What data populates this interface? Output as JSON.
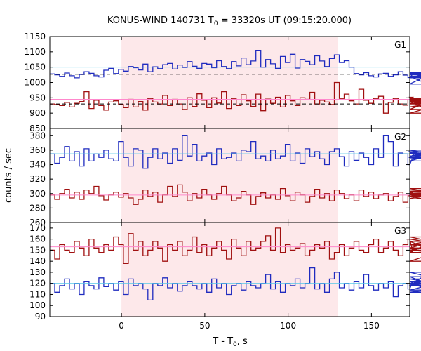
{
  "title": {
    "prefix": "KONUS-WIND 140731 T",
    "sub": "0",
    "suffix": " = 33320s UT (09:15:20.000)"
  },
  "colors": {
    "red_series": "#a01010",
    "blue_series": "#1f2bbf",
    "red_mean": "#ff88cc",
    "blue_mean": "#55c8e8",
    "shade": "#fde8ea",
    "dashed": "#000000"
  },
  "chart_data": [
    {
      "type": "line",
      "step": true,
      "panel_label": "G1",
      "ylim": [
        850,
        1150
      ],
      "yticks": [
        850,
        900,
        950,
        1000,
        1050,
        1100,
        1150
      ],
      "xlim": [
        -43,
        173
      ],
      "xticks": [
        0,
        50,
        100,
        150
      ],
      "shaded_interval": [
        0,
        130
      ],
      "series": [
        {
          "color": "blue",
          "mean": 1050,
          "background": 1027,
          "x_start": -43,
          "bin_width": 2.944,
          "values": [
            1028,
            1025,
            1020,
            1031,
            1022,
            1015,
            1026,
            1035,
            1030,
            1022,
            1018,
            1040,
            1046,
            1029,
            1043,
            1037,
            1052,
            1048,
            1041,
            1060,
            1035,
            1051,
            1045,
            1058,
            1062,
            1044,
            1057,
            1049,
            1068,
            1053,
            1046,
            1062,
            1060,
            1048,
            1071,
            1052,
            1045,
            1068,
            1054,
            1080,
            1058,
            1070,
            1105,
            1050,
            1075,
            1061,
            1046,
            1085,
            1065,
            1092,
            1047,
            1075,
            1069,
            1058,
            1087,
            1070,
            1052,
            1078,
            1090,
            1065,
            1071,
            1050,
            1029,
            1025,
            1032,
            1022,
            1018,
            1028,
            1030,
            1020,
            1025,
            1035,
            1024,
            1016,
            1027,
            1030,
            1020,
            995,
            1030,
            1018,
            1025,
            1032,
            1027,
            1015,
            1028,
            1020,
            1025
          ]
        },
        {
          "color": "red",
          "mean": 945,
          "background": 930,
          "x_start": -43,
          "bin_width": 2.944,
          "values": [
            930,
            928,
            925,
            935,
            920,
            932,
            938,
            970,
            915,
            942,
            925,
            910,
            936,
            940,
            928,
            918,
            945,
            920,
            938,
            910,
            948,
            936,
            930,
            958,
            925,
            945,
            930,
            912,
            950,
            922,
            963,
            942,
            918,
            950,
            933,
            970,
            915,
            948,
            925,
            960,
            940,
            922,
            962,
            908,
            946,
            932,
            952,
            920,
            958,
            940,
            925,
            950,
            945,
            968,
            930,
            942,
            936,
            928,
            1000,
            948,
            962,
            940,
            930,
            978,
            942,
            932,
            948,
            955,
            900,
            935,
            948,
            930,
            926,
            944,
            952,
            930,
            938,
            912,
            942,
            900,
            930,
            944,
            938,
            920,
            948,
            932,
            940
          ]
        }
      ]
    },
    {
      "type": "line",
      "step": true,
      "panel_label": "G2",
      "ylim": [
        260,
        390
      ],
      "yticks": [
        260,
        280,
        300,
        320,
        340,
        360,
        380
      ],
      "xlim": [
        -43,
        173
      ],
      "xticks": [
        0,
        50,
        100,
        150
      ],
      "shaded_interval": [
        0,
        130
      ],
      "series": [
        {
          "color": "blue",
          "mean": 355,
          "x_start": -43,
          "bin_width": 2.944,
          "values": [
            355,
            342,
            350,
            365,
            345,
            358,
            338,
            362,
            345,
            355,
            350,
            360,
            348,
            345,
            372,
            350,
            338,
            362,
            360,
            335,
            350,
            362,
            348,
            356,
            342,
            362,
            346,
            380,
            352,
            368,
            345,
            352,
            356,
            340,
            362,
            348,
            350,
            356,
            345,
            360,
            358,
            372,
            348,
            352,
            345,
            360,
            348,
            352,
            368,
            345,
            356,
            342,
            362,
            351,
            358,
            348,
            340,
            358,
            362,
            351,
            338,
            358,
            346,
            356,
            350,
            340,
            362,
            350,
            380,
            372,
            338,
            356,
            355,
            340,
            350,
            358,
            348,
            356,
            350,
            345,
            358,
            350,
            352,
            360,
            348,
            355,
            350
          ]
        },
        {
          "color": "red",
          "mean": 298,
          "x_start": -43,
          "bin_width": 2.944,
          "values": [
            298,
            292,
            300,
            306,
            294,
            302,
            292,
            305,
            300,
            310,
            297,
            291,
            298,
            302,
            295,
            300,
            294,
            285,
            292,
            305,
            296,
            302,
            288,
            298,
            310,
            296,
            312,
            302,
            290,
            300,
            294,
            306,
            298,
            292,
            300,
            310,
            298,
            290,
            294,
            303,
            298,
            285,
            296,
            301,
            294,
            298,
            292,
            307,
            297,
            290,
            302,
            298,
            288,
            296,
            306,
            294,
            300,
            290,
            305,
            300,
            293,
            298,
            290,
            305,
            296,
            302,
            293,
            298,
            300,
            290,
            296,
            302,
            288,
            297,
            302,
            296,
            293,
            300,
            296,
            305,
            302,
            307,
            296,
            300,
            303,
            298,
            302
          ]
        }
      ]
    },
    {
      "type": "line",
      "step": true,
      "panel_label": "G3",
      "ylim": [
        90,
        175
      ],
      "yticks": [
        90,
        100,
        110,
        120,
        130,
        140,
        150,
        160,
        170
      ],
      "xlim": [
        -43,
        173
      ],
      "xticks": [
        0,
        50,
        100,
        150
      ],
      "shaded_interval": [
        0,
        130
      ],
      "series": [
        {
          "color": "red",
          "mean": 153,
          "x_start": -43,
          "bin_width": 2.944,
          "values": [
            150,
            142,
            155,
            150,
            148,
            158,
            152,
            145,
            160,
            152,
            148,
            155,
            150,
            162,
            155,
            138,
            165,
            150,
            158,
            145,
            150,
            158,
            152,
            140,
            155,
            150,
            158,
            145,
            150,
            162,
            148,
            155,
            145,
            152,
            158,
            150,
            142,
            160,
            152,
            145,
            158,
            150,
            152,
            158,
            163,
            150,
            170,
            148,
            155,
            150,
            152,
            156,
            145,
            150,
            155,
            152,
            158,
            142,
            148,
            155,
            145,
            152,
            158,
            150,
            148,
            155,
            160,
            148,
            152,
            158,
            150,
            145,
            155,
            160,
            148,
            152,
            155,
            158,
            150,
            148,
            162,
            155,
            150,
            160,
            152,
            140,
            158
          ]
        },
        {
          "color": "blue",
          "mean": 120,
          "x_start": -43,
          "bin_width": 2.944,
          "values": [
            120,
            112,
            118,
            124,
            115,
            120,
            110,
            122,
            118,
            115,
            125,
            117,
            120,
            114,
            122,
            110,
            124,
            118,
            120,
            115,
            105,
            120,
            118,
            125,
            116,
            120,
            113,
            118,
            122,
            118,
            115,
            120,
            112,
            124,
            116,
            120,
            110,
            118,
            120,
            114,
            122,
            118,
            116,
            120,
            128,
            115,
            122,
            112,
            120,
            118,
            124,
            116,
            120,
            134,
            115,
            120,
            112,
            124,
            130,
            116,
            120,
            114,
            122,
            116,
            128,
            118,
            114,
            120,
            116,
            122,
            108,
            118,
            120,
            115,
            122,
            118,
            126,
            120,
            114,
            120,
            124,
            118,
            130,
            120,
            112,
            118,
            122
          ]
        }
      ]
    }
  ],
  "axes": {
    "xlabel_main": "T - T",
    "xlabel_sub": "0",
    "xlabel_suffix": ", s",
    "ylabel": "counts / sec"
  }
}
